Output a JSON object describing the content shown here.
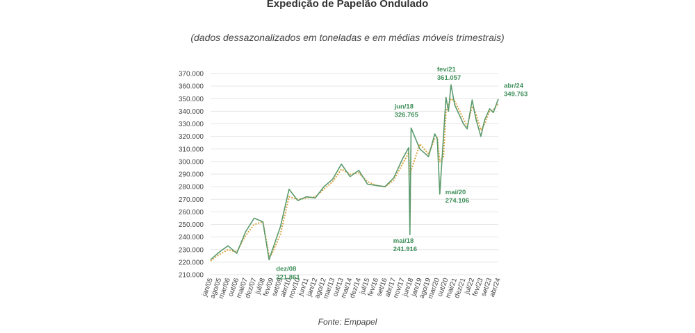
{
  "title": "Expedição de Papelão Ondulado",
  "subtitle": "(dados dessazonalizados em toneladas e em médias móveis trimestrais)",
  "source": "Fonte: Empapel",
  "colors": {
    "monthly": "#5a9a6c",
    "moving_average": "#d9a441",
    "annotation": "#3f8f5a",
    "grid": "#e6e6e6"
  },
  "chart_data": {
    "type": "line",
    "title": "Expedição de Papelão Ondulado",
    "subtitle": "(dados dessazonalizados em toneladas e em médias móveis trimestrais)",
    "ylim": [
      210000,
      370000
    ],
    "y_ticks": [
      "210.000",
      "220.000",
      "230.000",
      "240.000",
      "250.000",
      "260.000",
      "270.000",
      "280.000",
      "290.000",
      "300.000",
      "310.000",
      "320.000",
      "330.000",
      "340.000",
      "350.000",
      "360.000",
      "370.000"
    ],
    "x_ticks": [
      "jan/05",
      "ago/05",
      "mar/06",
      "out/06",
      "mai/07",
      "dez/07",
      "jul/08",
      "fev/09",
      "set/09",
      "abr/10",
      "nov/10",
      "jun/11",
      "jan/12",
      "ago/12",
      "mar/13",
      "out/13",
      "mai/14",
      "dez/14",
      "jul/15",
      "fev/16",
      "set/16",
      "abr/17",
      "nov/17",
      "jun/18",
      "jan/19",
      "ago/19",
      "mar/20",
      "out/20",
      "mai/21",
      "dez/21",
      "jul/22",
      "fev/23",
      "set/23",
      "abr/24"
    ],
    "grid": true,
    "series": [
      {
        "style": "solid",
        "color": "#5a9a6c",
        "points": [
          [
            "jan/05",
            222000
          ],
          [
            "ago/05",
            228000
          ],
          [
            "mar/06",
            233000
          ],
          [
            "out/06",
            227000
          ],
          [
            "mai/07",
            244000
          ],
          [
            "dez/07",
            255000
          ],
          [
            "jul/08",
            252000
          ],
          [
            "dez/08",
            221861
          ],
          [
            "fev/09",
            228000
          ],
          [
            "set/09",
            248000
          ],
          [
            "abr/10",
            278000
          ],
          [
            "nov/10",
            269000
          ],
          [
            "jun/11",
            272000
          ],
          [
            "jan/12",
            271000
          ],
          [
            "ago/12",
            280000
          ],
          [
            "mar/13",
            286000
          ],
          [
            "out/13",
            298000
          ],
          [
            "mai/14",
            288000
          ],
          [
            "dez/14",
            293000
          ],
          [
            "jul/15",
            282000
          ],
          [
            "fev/16",
            281000
          ],
          [
            "set/16",
            280000
          ],
          [
            "abr/17",
            287000
          ],
          [
            "nov/17",
            302000
          ],
          [
            "abr/18",
            311000
          ],
          [
            "mai/18",
            241916
          ],
          [
            "jun/18",
            326765
          ],
          [
            "jan/19",
            310000
          ],
          [
            "ago/19",
            304000
          ],
          [
            "jan/20",
            322000
          ],
          [
            "mar/20",
            318000
          ],
          [
            "mai/20",
            274106
          ],
          [
            "ago/20",
            320000
          ],
          [
            "out/20",
            351000
          ],
          [
            "dez/20",
            340000
          ],
          [
            "fev/21",
            361057
          ],
          [
            "mai/21",
            345000
          ],
          [
            "dez/21",
            330000
          ],
          [
            "mar/22",
            326000
          ],
          [
            "jul/22",
            349000
          ],
          [
            "out/22",
            334000
          ],
          [
            "fev/23",
            320000
          ],
          [
            "mai/23",
            333000
          ],
          [
            "set/23",
            342000
          ],
          [
            "dez/23",
            339000
          ],
          [
            "abr/24",
            349763
          ]
        ]
      },
      {
        "style": "dotted",
        "color": "#d9a441",
        "points": [
          [
            "jan/05",
            221000
          ],
          [
            "ago/05",
            226000
          ],
          [
            "mar/06",
            230000
          ],
          [
            "out/06",
            228000
          ],
          [
            "mai/07",
            241000
          ],
          [
            "dez/07",
            250000
          ],
          [
            "jul/08",
            252000
          ],
          [
            "dez/08",
            225000
          ],
          [
            "fev/09",
            226000
          ],
          [
            "set/09",
            242000
          ],
          [
            "abr/10",
            272000
          ],
          [
            "nov/10",
            270000
          ],
          [
            "jun/11",
            271000
          ],
          [
            "jan/12",
            272000
          ],
          [
            "ago/12",
            278000
          ],
          [
            "mar/13",
            284000
          ],
          [
            "out/13",
            294000
          ],
          [
            "mai/14",
            290000
          ],
          [
            "dez/14",
            291000
          ],
          [
            "jul/15",
            284000
          ],
          [
            "fev/16",
            281000
          ],
          [
            "set/16",
            280000
          ],
          [
            "abr/17",
            285000
          ],
          [
            "nov/17",
            298000
          ],
          [
            "abr/18",
            307000
          ],
          [
            "mai/18",
            290000
          ],
          [
            "jun/18",
            293000
          ],
          [
            "jan/19",
            314000
          ],
          [
            "ago/19",
            306000
          ],
          [
            "jan/20",
            318000
          ],
          [
            "mar/20",
            319000
          ],
          [
            "mai/20",
            300000
          ],
          [
            "ago/20",
            304000
          ],
          [
            "out/20",
            340000
          ],
          [
            "dez/20",
            345000
          ],
          [
            "fev/21",
            350000
          ],
          [
            "mai/21",
            348000
          ],
          [
            "dez/21",
            334000
          ],
          [
            "mar/22",
            328000
          ],
          [
            "jul/22",
            344000
          ],
          [
            "out/22",
            338000
          ],
          [
            "fev/23",
            325000
          ],
          [
            "mai/23",
            330000
          ],
          [
            "set/23",
            340000
          ],
          [
            "dez/23",
            341000
          ],
          [
            "abr/24",
            346000
          ]
        ]
      }
    ],
    "annotations": [
      {
        "x": "dez/08",
        "y": 221861,
        "label": "dez/08",
        "value": "221.861"
      },
      {
        "x": "mai/18",
        "y": 241916,
        "label": "mai/18",
        "value": "241.916"
      },
      {
        "x": "jun/18",
        "y": 326765,
        "label": "jun/18",
        "value": "326.765"
      },
      {
        "x": "fev/21",
        "y": 361057,
        "label": "fev/21",
        "value": "361.057"
      },
      {
        "x": "mai/20",
        "y": 274106,
        "label": "mai/20",
        "value": "274.106"
      },
      {
        "x": "abr/24",
        "y": 349763,
        "label": "abr/24",
        "value": "349.763"
      }
    ]
  }
}
